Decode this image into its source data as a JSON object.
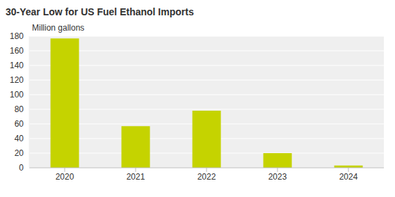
{
  "chart_data": {
    "type": "bar",
    "title": "30-Year Low for US Fuel Ethanol Imports",
    "y_label": "Million gallons",
    "categories": [
      "2020",
      "2021",
      "2022",
      "2023",
      "2024"
    ],
    "values": [
      177,
      57,
      78,
      20,
      3
    ],
    "color": "#c5d300",
    "ylim": [
      0,
      180
    ],
    "yticks": [
      0,
      20,
      40,
      60,
      80,
      100,
      120,
      140,
      160,
      180
    ],
    "grid": true
  }
}
